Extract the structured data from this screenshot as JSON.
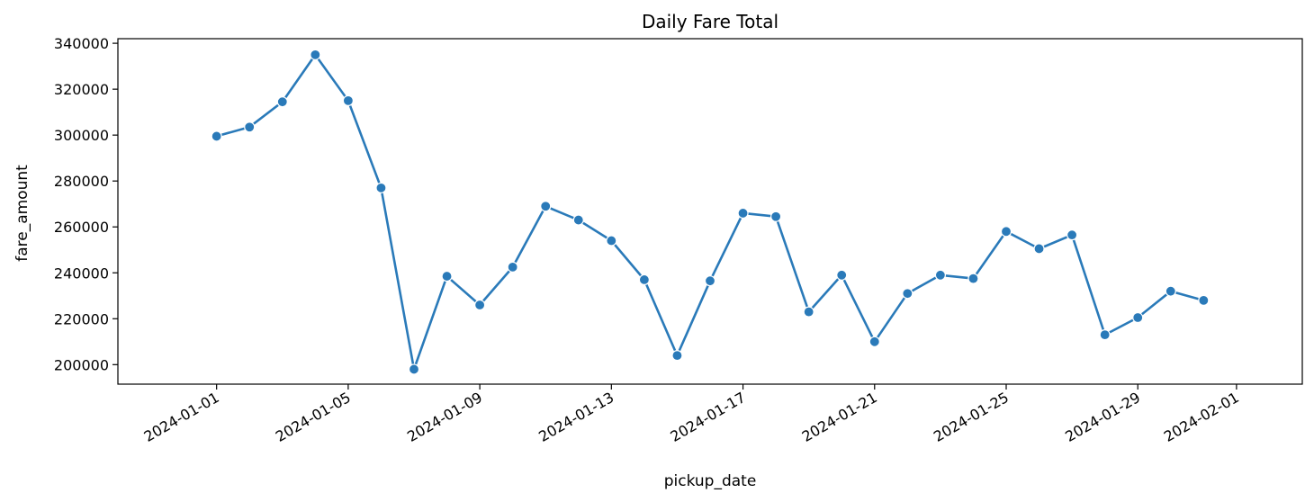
{
  "chart_data": {
    "type": "line",
    "title": "Daily Fare Total",
    "xlabel": "pickup_date",
    "ylabel": "fare_amount",
    "x": [
      "2024-01-01",
      "2024-01-02",
      "2024-01-03",
      "2024-01-04",
      "2024-01-05",
      "2024-01-06",
      "2024-01-07",
      "2024-01-08",
      "2024-01-09",
      "2024-01-10",
      "2024-01-11",
      "2024-01-12",
      "2024-01-13",
      "2024-01-14",
      "2024-01-15",
      "2024-01-16",
      "2024-01-17",
      "2024-01-18",
      "2024-01-19",
      "2024-01-20",
      "2024-01-21",
      "2024-01-22",
      "2024-01-23",
      "2024-01-24",
      "2024-01-25",
      "2024-01-26",
      "2024-01-27",
      "2024-01-28",
      "2024-01-29",
      "2024-01-30",
      "2024-01-31"
    ],
    "series": [
      {
        "color": "#2a7ab9",
        "values": [
          299500,
          303500,
          314500,
          335000,
          315000,
          277000,
          198000,
          238500,
          226000,
          242500,
          269000,
          263000,
          254000,
          237000,
          204000,
          236500,
          266000,
          264500,
          223000,
          239000,
          210000,
          231000,
          239000,
          237500,
          258000,
          250500,
          256500,
          213000,
          220500,
          232000,
          228000
        ]
      }
    ],
    "xlim": [
      "2023-12-29",
      "2024-02-03"
    ],
    "ylim": [
      191500,
      342000
    ],
    "yticks": [
      200000,
      220000,
      240000,
      260000,
      280000,
      300000,
      320000,
      340000
    ],
    "xticks": [
      "2024-01-01",
      "2024-01-05",
      "2024-01-09",
      "2024-01-13",
      "2024-01-17",
      "2024-01-21",
      "2024-01-25",
      "2024-01-29",
      "2024-02-01"
    ],
    "grid": false,
    "legend": "none"
  }
}
